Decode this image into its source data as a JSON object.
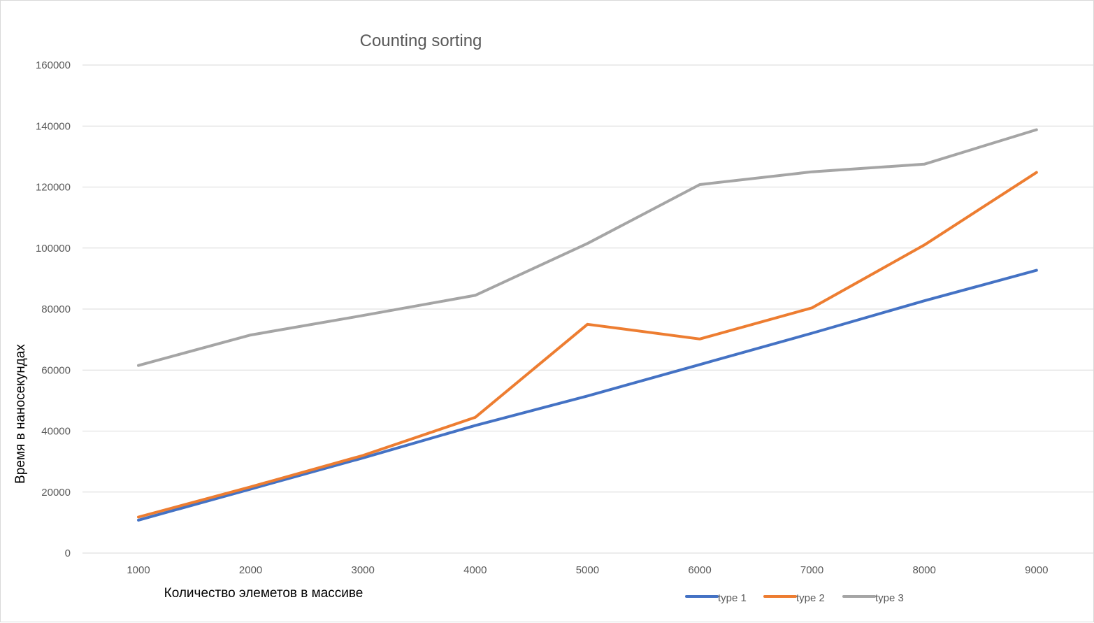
{
  "chart_data": {
    "type": "line",
    "title": "Counting sorting",
    "xlabel": "Количество элеметов в массиве",
    "ylabel": "Время в наносекундах",
    "categories": [
      "1000",
      "2000",
      "3000",
      "4000",
      "5000",
      "6000",
      "7000",
      "8000",
      "9000"
    ],
    "ylim": [
      0,
      160000
    ],
    "yticks": [
      "0",
      "20000",
      "40000",
      "60000",
      "80000",
      "100000",
      "120000",
      "140000",
      "160000"
    ],
    "grid": true,
    "legend_position": "bottom-right",
    "series": [
      {
        "name": "type 1",
        "color": "#4472C4",
        "values": [
          10800,
          21000,
          31200,
          41800,
          51500,
          61800,
          72100,
          82700,
          92700
        ]
      },
      {
        "name": "type 2",
        "color": "#ED7D31",
        "values": [
          11800,
          21700,
          32000,
          44500,
          75000,
          70200,
          80400,
          101000,
          124800
        ]
      },
      {
        "name": "type 3",
        "color": "#A5A5A5",
        "values": [
          61500,
          71500,
          77900,
          84500,
          101500,
          120800,
          125000,
          127500,
          138800
        ]
      }
    ]
  }
}
